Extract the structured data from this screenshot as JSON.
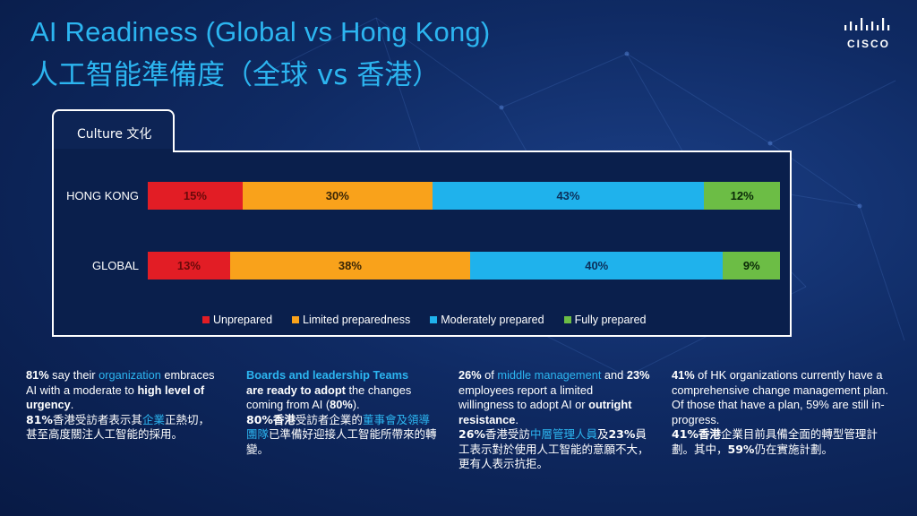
{
  "title": {
    "en": "AI Readiness (Global vs Hong Kong)",
    "zh": "人工智能準備度（全球 vs 香港）"
  },
  "logo": {
    "text": "CISCO"
  },
  "tab": {
    "label": "Culture 文化"
  },
  "colors": {
    "unprepared": "#e21d25",
    "limited": "#f9a21b",
    "moderate": "#1fb2ec",
    "fully": "#6cbd45",
    "accent": "#2cb5f0"
  },
  "chart_data": {
    "type": "bar",
    "orientation": "horizontal-stacked-100",
    "categories": [
      "HONG KONG",
      "GLOBAL"
    ],
    "series": [
      {
        "name": "Unprepared",
        "values": [
          15,
          13
        ]
      },
      {
        "name": "Limited preparedness",
        "values": [
          30,
          38
        ]
      },
      {
        "name": "Moderately prepared",
        "values": [
          43,
          40
        ]
      },
      {
        "name": "Fully prepared",
        "values": [
          12,
          9
        ]
      }
    ],
    "value_labels": [
      [
        "15%",
        "30%",
        "43%",
        "12%"
      ],
      [
        "13%",
        "38%",
        "40%",
        "9%"
      ]
    ],
    "legend_position": "bottom"
  },
  "columns": [
    {
      "p1": "81%",
      "p2": " say their ",
      "p3": "organization",
      "p4": " embraces AI with a moderate to ",
      "p5": "high level of urgency",
      "p6": ".",
      "zh1": "81%",
      "zh2": "香港受訪者表示其",
      "zh3": "企業",
      "zh4": "正熱切，甚至高度關注人工智能的採用。"
    },
    {
      "p1": "Boards and leadership Teams",
      "p2": "are ready to adopt",
      "p3": " the changes coming from AI (",
      "p4": "80%",
      "p5": ").",
      "zh1": "80%香港",
      "zh2": "受訪者企業的",
      "zh3": "董事會及領導團隊",
      "zh4": "已準備好迎接人工智能所帶來的轉變。"
    },
    {
      "p1": "26%",
      "p2": " of ",
      "p3": "middle management",
      "p4": " and ",
      "p5": "23%",
      "p6": " employees report a limited willingness to adopt AI or ",
      "p7": "outright resistance",
      "p8": ".",
      "zh1": "26%",
      "zh2": "香港受訪",
      "zh3": "中層管理人員",
      "zh4": "及",
      "zh5": "23%",
      "zh6": "員工表示對於使用人工智能的意願不大，更有人表示抗拒。"
    },
    {
      "p1": "41%",
      "p2": " of HK organizations currently have a comprehensive change management plan.",
      "p3": "Of those that have a plan, 59% are still in-progress.",
      "zh1": "41%香港",
      "zh2": "企業目前具備全面的轉型管理計劃。其中，",
      "zh3": "59%",
      "zh4": "仍在實施計劃。"
    }
  ]
}
